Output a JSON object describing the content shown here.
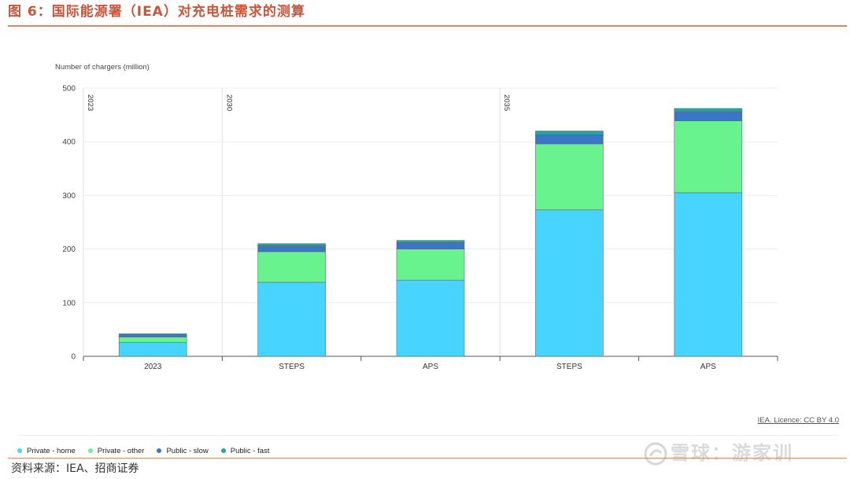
{
  "header": {
    "title": "图 6：国际能源署（IEA）对充电桩需求的测算"
  },
  "footer": {
    "source": "资料来源：IEA、招商证券",
    "watermark": "雪球：游家训"
  },
  "licence": "IEA. Licence: CC BY 4.0",
  "colors": {
    "title": "#c8553a",
    "rule": "#d9876a"
  },
  "chart_data": {
    "type": "bar",
    "stacked": true,
    "ylabel": "Number of chargers (million)",
    "ylim": [
      0,
      500
    ],
    "yticks": [
      0,
      100,
      200,
      300,
      400,
      500
    ],
    "categories": [
      "2023",
      "STEPS",
      "APS",
      "STEPS",
      "APS"
    ],
    "group_labels": [
      "2023",
      "2030",
      "2035"
    ],
    "group_start_index": [
      0,
      1,
      3
    ],
    "grid": true,
    "legend_position": "bottom-left",
    "series": [
      {
        "name": "Private - home",
        "color": "#47d4fe",
        "values": [
          26,
          138,
          142,
          273,
          305
        ]
      },
      {
        "name": "Private - other",
        "color": "#69f38f",
        "values": [
          10,
          57,
          58,
          123,
          134
        ]
      },
      {
        "name": "Public - slow",
        "color": "#3b75c9",
        "values": [
          4,
          11,
          12,
          17,
          17
        ]
      },
      {
        "name": "Public - fast",
        "color": "#26a69a",
        "values": [
          2,
          4,
          4,
          7,
          6
        ]
      }
    ]
  }
}
